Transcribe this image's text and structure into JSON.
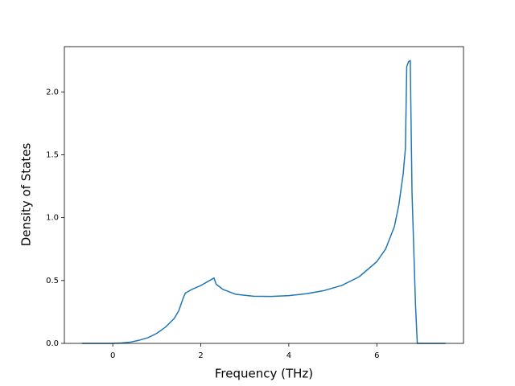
{
  "chart_data": {
    "type": "line",
    "xlabel": "Frequency (THz)",
    "ylabel": "Density of States",
    "x": [
      -0.7,
      0,
      0.2,
      0.4,
      0.6,
      0.8,
      1.0,
      1.2,
      1.4,
      1.5,
      1.6,
      1.65,
      1.7,
      1.8,
      2.0,
      2.2,
      2.3,
      2.35,
      2.5,
      2.8,
      3.2,
      3.6,
      4.0,
      4.4,
      4.8,
      5.2,
      5.6,
      6.0,
      6.2,
      6.4,
      6.5,
      6.6,
      6.65,
      6.68,
      6.72,
      6.76,
      6.8,
      6.88,
      6.92,
      7.56
    ],
    "series": [
      {
        "color": "#1f77b4",
        "values": [
          0,
          0,
          0.003,
          0.01,
          0.025,
          0.045,
          0.08,
          0.13,
          0.2,
          0.26,
          0.36,
          0.4,
          0.41,
          0.43,
          0.46,
          0.5,
          0.52,
          0.47,
          0.43,
          0.39,
          0.375,
          0.373,
          0.38,
          0.395,
          0.42,
          0.46,
          0.53,
          0.65,
          0.75,
          0.93,
          1.1,
          1.35,
          1.55,
          2.2,
          2.24,
          2.25,
          1.2,
          0.3,
          0,
          0
        ]
      }
    ],
    "xlim": [
      -1.1,
      7.97
    ],
    "ylim": [
      0,
      2.36
    ],
    "xticks": [
      0,
      2,
      4,
      6
    ],
    "yticks": [
      {
        "value": 0,
        "label": "0.0"
      },
      {
        "value": 0.5,
        "label": "0.5"
      },
      {
        "value": 1,
        "label": "1.0"
      },
      {
        "value": 1.5,
        "label": "1.5"
      },
      {
        "value": 2,
        "label": "2.0"
      }
    ]
  }
}
